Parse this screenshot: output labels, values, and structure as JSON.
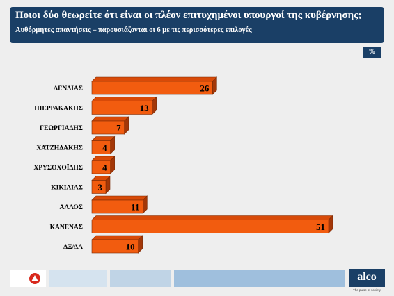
{
  "header": {
    "title": "Ποιοι δύο θεωρείτε ότι είναι οι πλέον επιτυχημένοι υπουργοί της κυβέρνησης;",
    "subtitle": "Αυθόρμητες απαντήσεις – παρουσιάζονται οι 6 με τις περισσότερες επιλογές"
  },
  "unit_badge": "%",
  "chart_data": {
    "type": "bar",
    "orientation": "horizontal",
    "title": "Ποιοι δύο θεωρείτε ότι είναι οι πλέον επιτυχημένοι υπουργοί της κυβέρνησης;",
    "subtitle": "Αυθόρμητες απαντήσεις – παρουσιάζονται οι 6 με τις περισσότερες επιλογές",
    "unit": "%",
    "categories": [
      "ΔΕΝΔΙΑΣ",
      "ΠΙΕΡΡΑΚΑΚΗΣ",
      "ΓΕΩΡΓΙΑΔΗΣ",
      "ΧΑΤΖΗΔΑΚΗΣ",
      "ΧΡΥΣΟΧΟΪΔΗΣ",
      "ΚΙΚΙΛΙΑΣ",
      "ΑΛΛΟΣ",
      "ΚΑΝΕΝΑΣ",
      "ΔΞ/ΔΑ"
    ],
    "values": [
      26,
      13,
      7,
      4,
      4,
      3,
      11,
      51,
      10
    ],
    "xlim": [
      0,
      51
    ],
    "grid": false,
    "legend": "none",
    "bar_color": "#f25c0f",
    "bar_top_color": "#d84a08",
    "bar_side_color": "#a33708"
  },
  "footer": {
    "strip_colors": [
      "#ffffff",
      "#d5e3ef",
      "#c0d4e6",
      "#9fbfdd"
    ],
    "logo_left_color": "#d8281c",
    "logo_text": "alco",
    "tagline": "The pulse of society"
  }
}
